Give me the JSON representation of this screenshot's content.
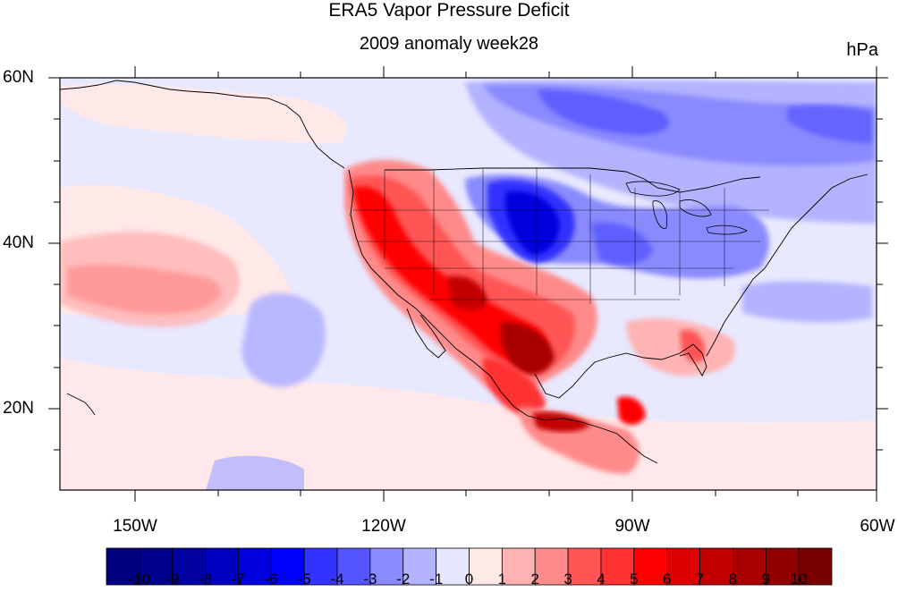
{
  "title": "ERA5 Vapor Pressure Deficit",
  "subtitle": "2009 anomaly week28",
  "units": "hPa",
  "axes": {
    "x_ticks": [
      "150W",
      "120W",
      "90W",
      "60W"
    ],
    "y_ticks": [
      "60N",
      "40N",
      "20N"
    ]
  },
  "colorbar": {
    "labels": [
      "-10",
      "-9",
      "-8",
      "-7",
      "-6",
      "-5",
      "-4",
      "-3",
      "-2",
      "-1",
      "0",
      "1",
      "2",
      "3",
      "4",
      "5",
      "6",
      "7",
      "8",
      "9",
      "10"
    ],
    "colors": [
      "#00007f",
      "#00008f",
      "#0000a3",
      "#0000c2",
      "#0000df",
      "#0000ff",
      "#3333ff",
      "#5555ff",
      "#8a8aff",
      "#b3b3ff",
      "#e6e6ff",
      "#ffe8e8",
      "#ffb3b3",
      "#ff8a8a",
      "#ff5555",
      "#ff3333",
      "#ff0000",
      "#df0000",
      "#c20000",
      "#a80000",
      "#900000",
      "#7a0000"
    ]
  },
  "palette": {
    "neutral_cool": "#e8e8ff",
    "neutral_warm": "#ffe6e6",
    "land_line": "#000000"
  }
}
